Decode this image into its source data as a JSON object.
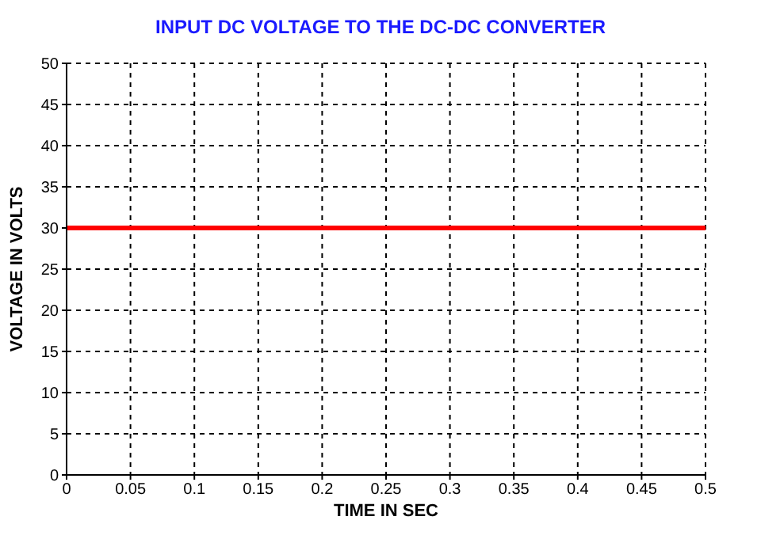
{
  "chart_data": {
    "type": "line",
    "title": "INPUT DC VOLTAGE TO THE DC-DC CONVERTER",
    "xlabel": "TIME IN SEC",
    "ylabel": "VOLTAGE IN VOLTS",
    "x": [
      0,
      0.5
    ],
    "series": [
      {
        "color": "#ff0000",
        "values": [
          30,
          30
        ]
      }
    ],
    "xlim": [
      0,
      0.5
    ],
    "xticks": [
      0,
      0.05,
      0.1,
      0.15,
      0.2,
      0.25,
      0.3,
      0.35,
      0.4,
      0.45,
      0.5
    ],
    "ylim": [
      0,
      50
    ],
    "yticks": [
      0,
      5,
      10,
      15,
      20,
      25,
      30,
      35,
      40,
      45,
      50
    ],
    "grid": true,
    "legend": false,
    "marker": "none",
    "line_style": "solid"
  }
}
